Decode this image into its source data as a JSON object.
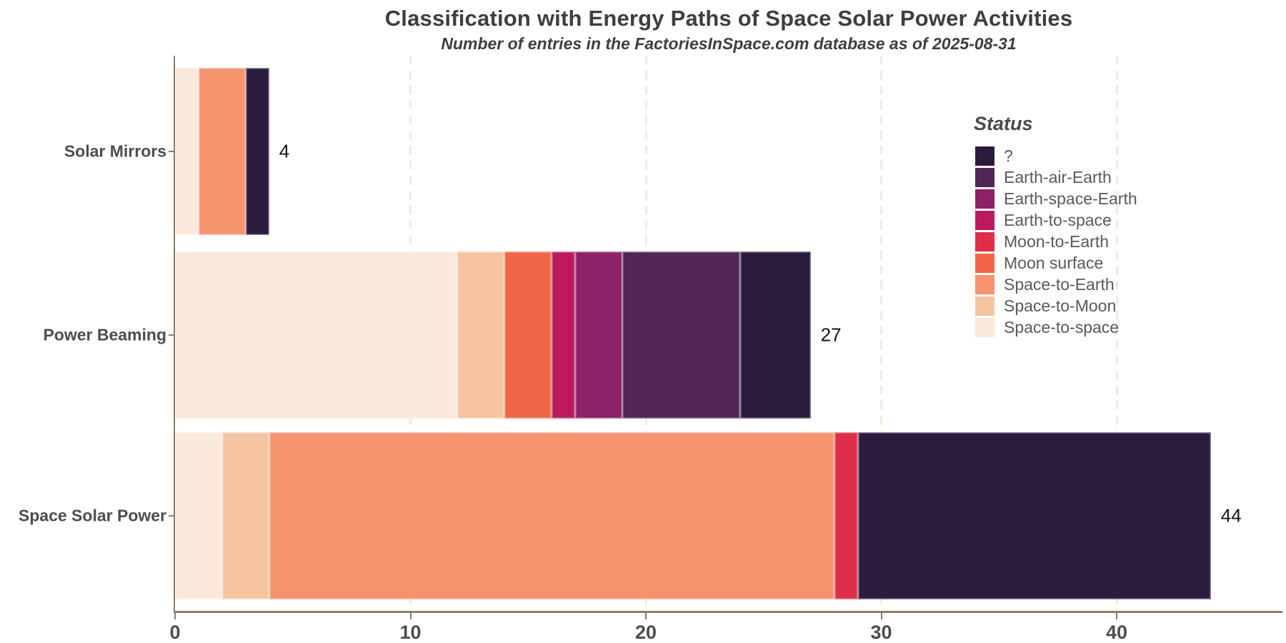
{
  "header": {
    "title": "Classification with Energy Paths of Space Solar Power Activities",
    "subtitle": "Number of entries in the FactoriesInSpace.com database as of 2025-08-31"
  },
  "legend": {
    "title": "Status",
    "position": "right-top"
  },
  "colors": {
    "background": "#ffffff",
    "axis": "#8a7c68",
    "gridline": "#f5e9dd",
    "tick_label": "#4d4d4d",
    "category_label": "#4d4d4d",
    "value_label": "#141414",
    "title_text": "#3e3e3e",
    "legend_text": "#595959"
  },
  "chart_data": {
    "type": "bar",
    "orientation": "horizontal-stacked",
    "title": "Classification with Energy Paths of Space Solar Power Activities",
    "subtitle": "Number of entries in the FactoriesInSpace.com database as of 2025-08-31",
    "categories": [
      "Solar Mirrors",
      "Power Beaming",
      "Space Solar Power"
    ],
    "totals": [
      4,
      27,
      44
    ],
    "series": [
      {
        "name": "?",
        "color": "#2b1b3c",
        "values": [
          1,
          3,
          15
        ]
      },
      {
        "name": "Earth-air-Earth",
        "color": "#522557",
        "values": [
          0,
          5,
          0
        ]
      },
      {
        "name": "Earth-space-Earth",
        "color": "#8b2166",
        "values": [
          0,
          2,
          0
        ]
      },
      {
        "name": "Earth-to-space",
        "color": "#bc1a5f",
        "values": [
          0,
          1,
          0
        ]
      },
      {
        "name": "Moon-to-Earth",
        "color": "#de2e49",
        "values": [
          0,
          0,
          1
        ]
      },
      {
        "name": "Moon surface",
        "color": "#f06646",
        "values": [
          0,
          2,
          0
        ]
      },
      {
        "name": "Space-to-Earth",
        "color": "#f4936e",
        "values": [
          2,
          0,
          24
        ]
      },
      {
        "name": "Space-to-Moon",
        "color": "#f6c4a0",
        "values": [
          0,
          2,
          2
        ]
      },
      {
        "name": "Space-to-space",
        "color": "#fae9da",
        "values": [
          1,
          12,
          2
        ]
      }
    ],
    "stack_order_left_to_right": "reverse of legend order (Space-to-space first, ? last)",
    "xlabel": "",
    "ylabel": "",
    "x_ticks": [
      0,
      10,
      20,
      30,
      40
    ],
    "xlim": [
      0,
      47
    ],
    "legend_title": "Status",
    "grid": "vertical-dashed"
  }
}
